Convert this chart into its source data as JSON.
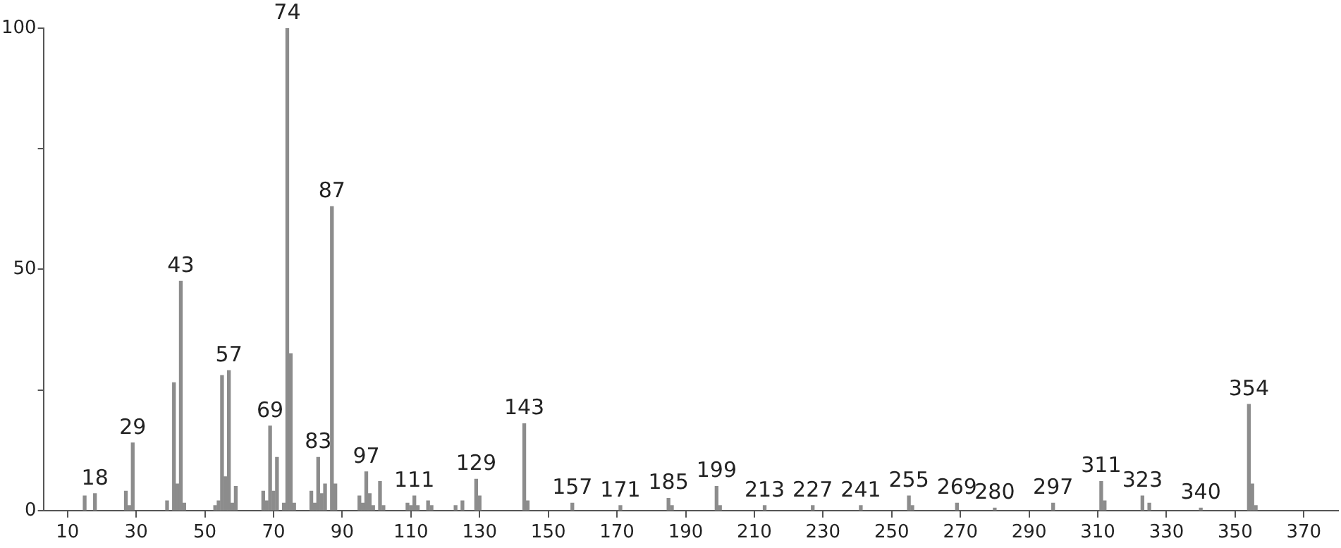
{
  "chart_data": {
    "type": "bar",
    "x": [
      15,
      18,
      27,
      28,
      29,
      39,
      41,
      42,
      43,
      44,
      53,
      54,
      55,
      56,
      57,
      58,
      59,
      67,
      68,
      69,
      70,
      71,
      73,
      74,
      75,
      76,
      81,
      82,
      83,
      84,
      85,
      87,
      88,
      95,
      96,
      97,
      98,
      99,
      101,
      102,
      109,
      110,
      111,
      112,
      115,
      116,
      123,
      125,
      129,
      130,
      143,
      144,
      157,
      171,
      185,
      186,
      199,
      200,
      213,
      227,
      241,
      255,
      256,
      269,
      280,
      297,
      311,
      312,
      323,
      325,
      340,
      354,
      355,
      356
    ],
    "values": [
      3,
      3.5,
      4,
      1,
      14,
      2,
      26.5,
      5.5,
      47.5,
      1.5,
      1,
      2,
      28,
      7,
      29,
      1.5,
      5,
      4,
      2,
      17.5,
      4,
      11,
      1.5,
      100,
      32.5,
      1.5,
      4,
      1.5,
      11,
      3.5,
      5.5,
      63,
      5.5,
      3,
      1.5,
      8,
      3.5,
      1,
      6,
      1,
      1.5,
      1,
      3,
      1,
      2,
      1,
      1,
      2,
      6.5,
      3,
      18,
      2,
      1.5,
      1,
      2.5,
      1,
      5,
      1,
      1,
      1,
      1,
      3,
      1,
      1.5,
      0.5,
      1.5,
      6,
      2,
      3,
      1.5,
      0.5,
      22,
      5.5,
      1
    ],
    "color": "#8c8c8c",
    "xlim": [
      3,
      380
    ],
    "xticks": [
      10,
      30,
      50,
      70,
      90,
      110,
      130,
      150,
      170,
      190,
      210,
      230,
      250,
      270,
      290,
      310,
      330,
      350,
      370
    ],
    "ylim": [
      0,
      100
    ],
    "yticks": [
      0,
      {
        "value": 25,
        "label": null
      },
      50,
      {
        "value": 75,
        "label": null
      },
      100
    ],
    "grid": false,
    "legend": false,
    "annotations": [
      {
        "text": "18",
        "x": 18,
        "y": 3.5
      },
      {
        "text": "29",
        "x": 29,
        "y": 14
      },
      {
        "text": "43",
        "x": 43,
        "y": 47.5
      },
      {
        "text": "57",
        "x": 57,
        "y": 29
      },
      {
        "text": "69",
        "x": 69,
        "y": 17.5
      },
      {
        "text": "74",
        "x": 74,
        "y": 100
      },
      {
        "text": "83",
        "x": 83,
        "y": 11
      },
      {
        "text": "87",
        "x": 87,
        "y": 63
      },
      {
        "text": "97",
        "x": 97,
        "y": 8
      },
      {
        "text": "111",
        "x": 111,
        "y": 3
      },
      {
        "text": "129",
        "x": 129,
        "y": 6.5
      },
      {
        "text": "143",
        "x": 143,
        "y": 18
      },
      {
        "text": "157",
        "x": 157,
        "y": 1.5
      },
      {
        "text": "171",
        "x": 171,
        "y": 1
      },
      {
        "text": "185",
        "x": 185,
        "y": 2.5
      },
      {
        "text": "199",
        "x": 199,
        "y": 5
      },
      {
        "text": "213",
        "x": 213,
        "y": 1
      },
      {
        "text": "227",
        "x": 227,
        "y": 1
      },
      {
        "text": "241",
        "x": 241,
        "y": 1
      },
      {
        "text": "255",
        "x": 255,
        "y": 3
      },
      {
        "text": "269",
        "x": 269,
        "y": 1.5
      },
      {
        "text": "280",
        "x": 280,
        "y": 0.5
      },
      {
        "text": "297",
        "x": 297,
        "y": 1.5
      },
      {
        "text": "311",
        "x": 311,
        "y": 6
      },
      {
        "text": "323",
        "x": 323,
        "y": 3
      },
      {
        "text": "340",
        "x": 340,
        "y": 0.5
      },
      {
        "text": "354",
        "x": 354,
        "y": 22
      }
    ]
  }
}
